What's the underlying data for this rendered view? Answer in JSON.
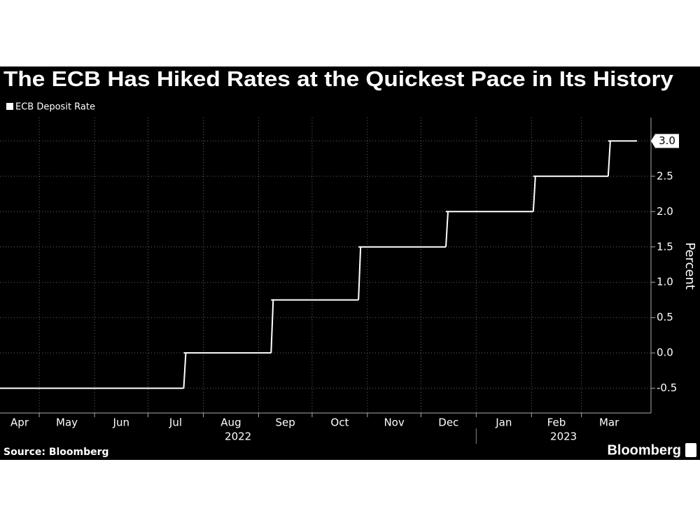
{
  "chart_data": {
    "type": "line",
    "step": true,
    "title": "The ECB Has Hiked Rates at the Quickest Pace in Its History",
    "y_label": "Percent",
    "source": "Source: Bloomberg",
    "logo": "Bloomberg",
    "series": [
      {
        "name": "ECB Deposit Rate",
        "color": "#ffffff",
        "x": [
          "2022-04-09",
          "2022-07-21",
          "2022-09-08",
          "2022-10-27",
          "2022-12-15",
          "2023-02-02",
          "2023-03-16",
          "2023-03-31"
        ],
        "values": [
          -0.5,
          0,
          0.75,
          1.5,
          2,
          2.5,
          3,
          3
        ],
        "value_labels": [
          null,
          null,
          null,
          null,
          null,
          null,
          null,
          "3.0"
        ]
      }
    ],
    "xlim": [
      "2022-04-09",
      "2023-04-09"
    ],
    "xticks": [
      {
        "value": "2022-04",
        "label": "Apr"
      },
      {
        "value": "2022-05",
        "label": "May"
      },
      {
        "value": "2022-06",
        "label": "Jun"
      },
      {
        "value": "2022-07",
        "label": "Jul"
      },
      {
        "value": "2022-08",
        "label": "Aug"
      },
      {
        "value": "2022-09",
        "label": "Sep"
      },
      {
        "value": "2022-10",
        "label": "Oct"
      },
      {
        "value": "2022-11",
        "label": "Nov"
      },
      {
        "value": "2022-12",
        "label": "Dec"
      },
      {
        "value": "2023-01",
        "label": "Jan"
      },
      {
        "value": "2023-02",
        "label": "Feb"
      },
      {
        "value": "2023-03",
        "label": "Mar"
      }
    ],
    "years": [
      2022,
      2023
    ],
    "ylim": [
      -0.85,
      3.33
    ],
    "yticks": [
      -0.5,
      {
        "value": 0,
        "label": "0.0"
      },
      0.5,
      {
        "value": 1,
        "label": "1.0"
      },
      1.5,
      {
        "value": 2,
        "label": "2.0"
      },
      2.5,
      {
        "value": 3,
        "label": "3.0"
      }
    ],
    "grid": true
  }
}
